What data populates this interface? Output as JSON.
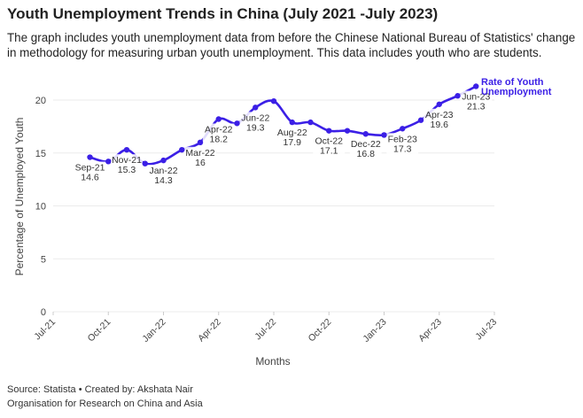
{
  "title": "Youth Unemployment Trends in China (July 2021 -July 2023)",
  "subtitle": "The graph includes youth unemployment data from before the Chinese National Bureau of Statistics' change in methodology for measuring urban youth unemployment. This data includes youth who are students.",
  "footer": {
    "line1": "Source: Statista • Created by: Akshata Nair",
    "line2": "Organisation for Research on China and Asia"
  },
  "chart_data": {
    "type": "line",
    "xlabel": "Months",
    "ylabel": "Percentage of Unemployed Youth",
    "ylim": [
      0,
      22
    ],
    "yticks": [
      0,
      5,
      10,
      15,
      20
    ],
    "xticks": [
      "Jul-21",
      "Oct-21",
      "Jan-22",
      "Apr-22",
      "Jul-22",
      "Oct-22",
      "Jan-23",
      "Apr-23",
      "Jul-23"
    ],
    "grid": true,
    "line_color": "#3b1fe6",
    "series": [
      {
        "name": "Rate of Youth Unemployment",
        "x": [
          "Sep-21",
          "Oct-21",
          "Nov-21",
          "Dec-21",
          "Jan-22",
          "Feb-22",
          "Mar-22",
          "Apr-22",
          "May-22",
          "Jun-22",
          "Jul-22",
          "Aug-22",
          "Sep-22",
          "Oct-22",
          "Nov-22",
          "Dec-22",
          "Jan-23",
          "Feb-23",
          "Mar-23",
          "Apr-23",
          "May-23",
          "Jun-23"
        ],
        "values": [
          14.6,
          14.2,
          15.3,
          14.0,
          14.3,
          15.3,
          16,
          18.2,
          17.8,
          19.3,
          19.9,
          17.9,
          17.9,
          17.1,
          17.1,
          16.8,
          16.7,
          17.3,
          18.1,
          19.6,
          20.4,
          21.3
        ]
      }
    ],
    "data_labels": [
      {
        "x": "Sep-21",
        "month": "Sep-21",
        "value": "14.6"
      },
      {
        "x": "Nov-21",
        "month": "Nov-21",
        "value": "15.3"
      },
      {
        "x": "Jan-22",
        "month": "Jan-22",
        "value": "14.3"
      },
      {
        "x": "Mar-22",
        "month": "Mar-22",
        "value": "16"
      },
      {
        "x": "Apr-22",
        "month": "Apr-22",
        "value": "18.2"
      },
      {
        "x": "Jun-22",
        "month": "Jun-22",
        "value": "19.3"
      },
      {
        "x": "Aug-22",
        "month": "Aug-22",
        "value": "17.9"
      },
      {
        "x": "Oct-22",
        "month": "Oct-22",
        "value": "17.1"
      },
      {
        "x": "Dec-22",
        "month": "Dec-22",
        "value": "16.8"
      },
      {
        "x": "Feb-23",
        "month": "Feb-23",
        "value": "17.3"
      },
      {
        "x": "Apr-23",
        "month": "Apr-23",
        "value": "19.6"
      },
      {
        "x": "Jun-23",
        "month": "Jun-23",
        "value": "21.3"
      }
    ],
    "legend": {
      "line1": "Rate of Youth",
      "line2": "Unemployment",
      "placement": "top-right, at line end"
    }
  }
}
